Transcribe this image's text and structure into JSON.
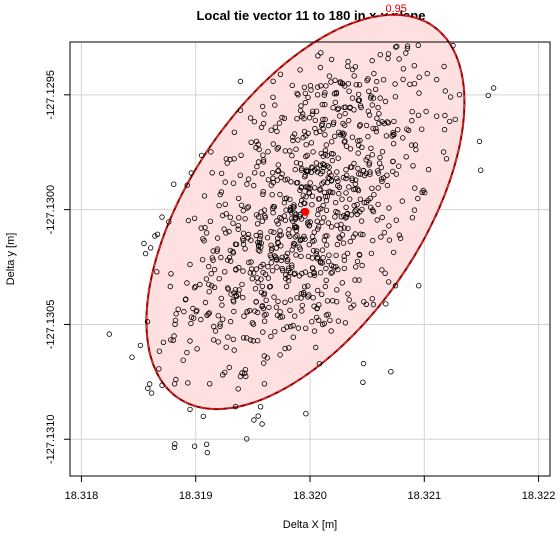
{
  "chart_data": {
    "type": "scatter",
    "title": "Local tie vector 11 to 180 in x-y plane",
    "xlabel": "Delta X [m]",
    "ylabel": "Delta y [m]",
    "xlim": [
      18.3179,
      18.3221
    ],
    "ylim": [
      -127.13116,
      -127.12927
    ],
    "x_ticks": [
      18.318,
      18.319,
      18.32,
      18.321,
      18.322
    ],
    "x_tick_labels": [
      "18.318",
      "18.319",
      "18.320",
      "18.321",
      "18.322"
    ],
    "y_ticks": [
      -127.1295,
      -127.13,
      -127.1305,
      -127.131
    ],
    "y_tick_labels": [
      "-127.1295",
      "-127.1300",
      "-127.1305",
      "-127.1310"
    ],
    "grid": true,
    "center": {
      "x": 18.31996,
      "y": -127.13001
    },
    "confidence_ellipse": {
      "level_label": "0.95",
      "center_x": 18.31996,
      "center_y": -127.13001,
      "semi_major": 0.001494,
      "semi_minor": 0.000664,
      "angle_deg": 24.0,
      "fill_color": "#ffe0e0",
      "edge_color": "#8b0000"
    },
    "point_count": 1000,
    "point_spread": {
      "sd_x": 0.000549,
      "sd_y": 0.000375,
      "correlation": 0.52
    },
    "point_color": "#000000",
    "center_color": "#ff0000"
  }
}
